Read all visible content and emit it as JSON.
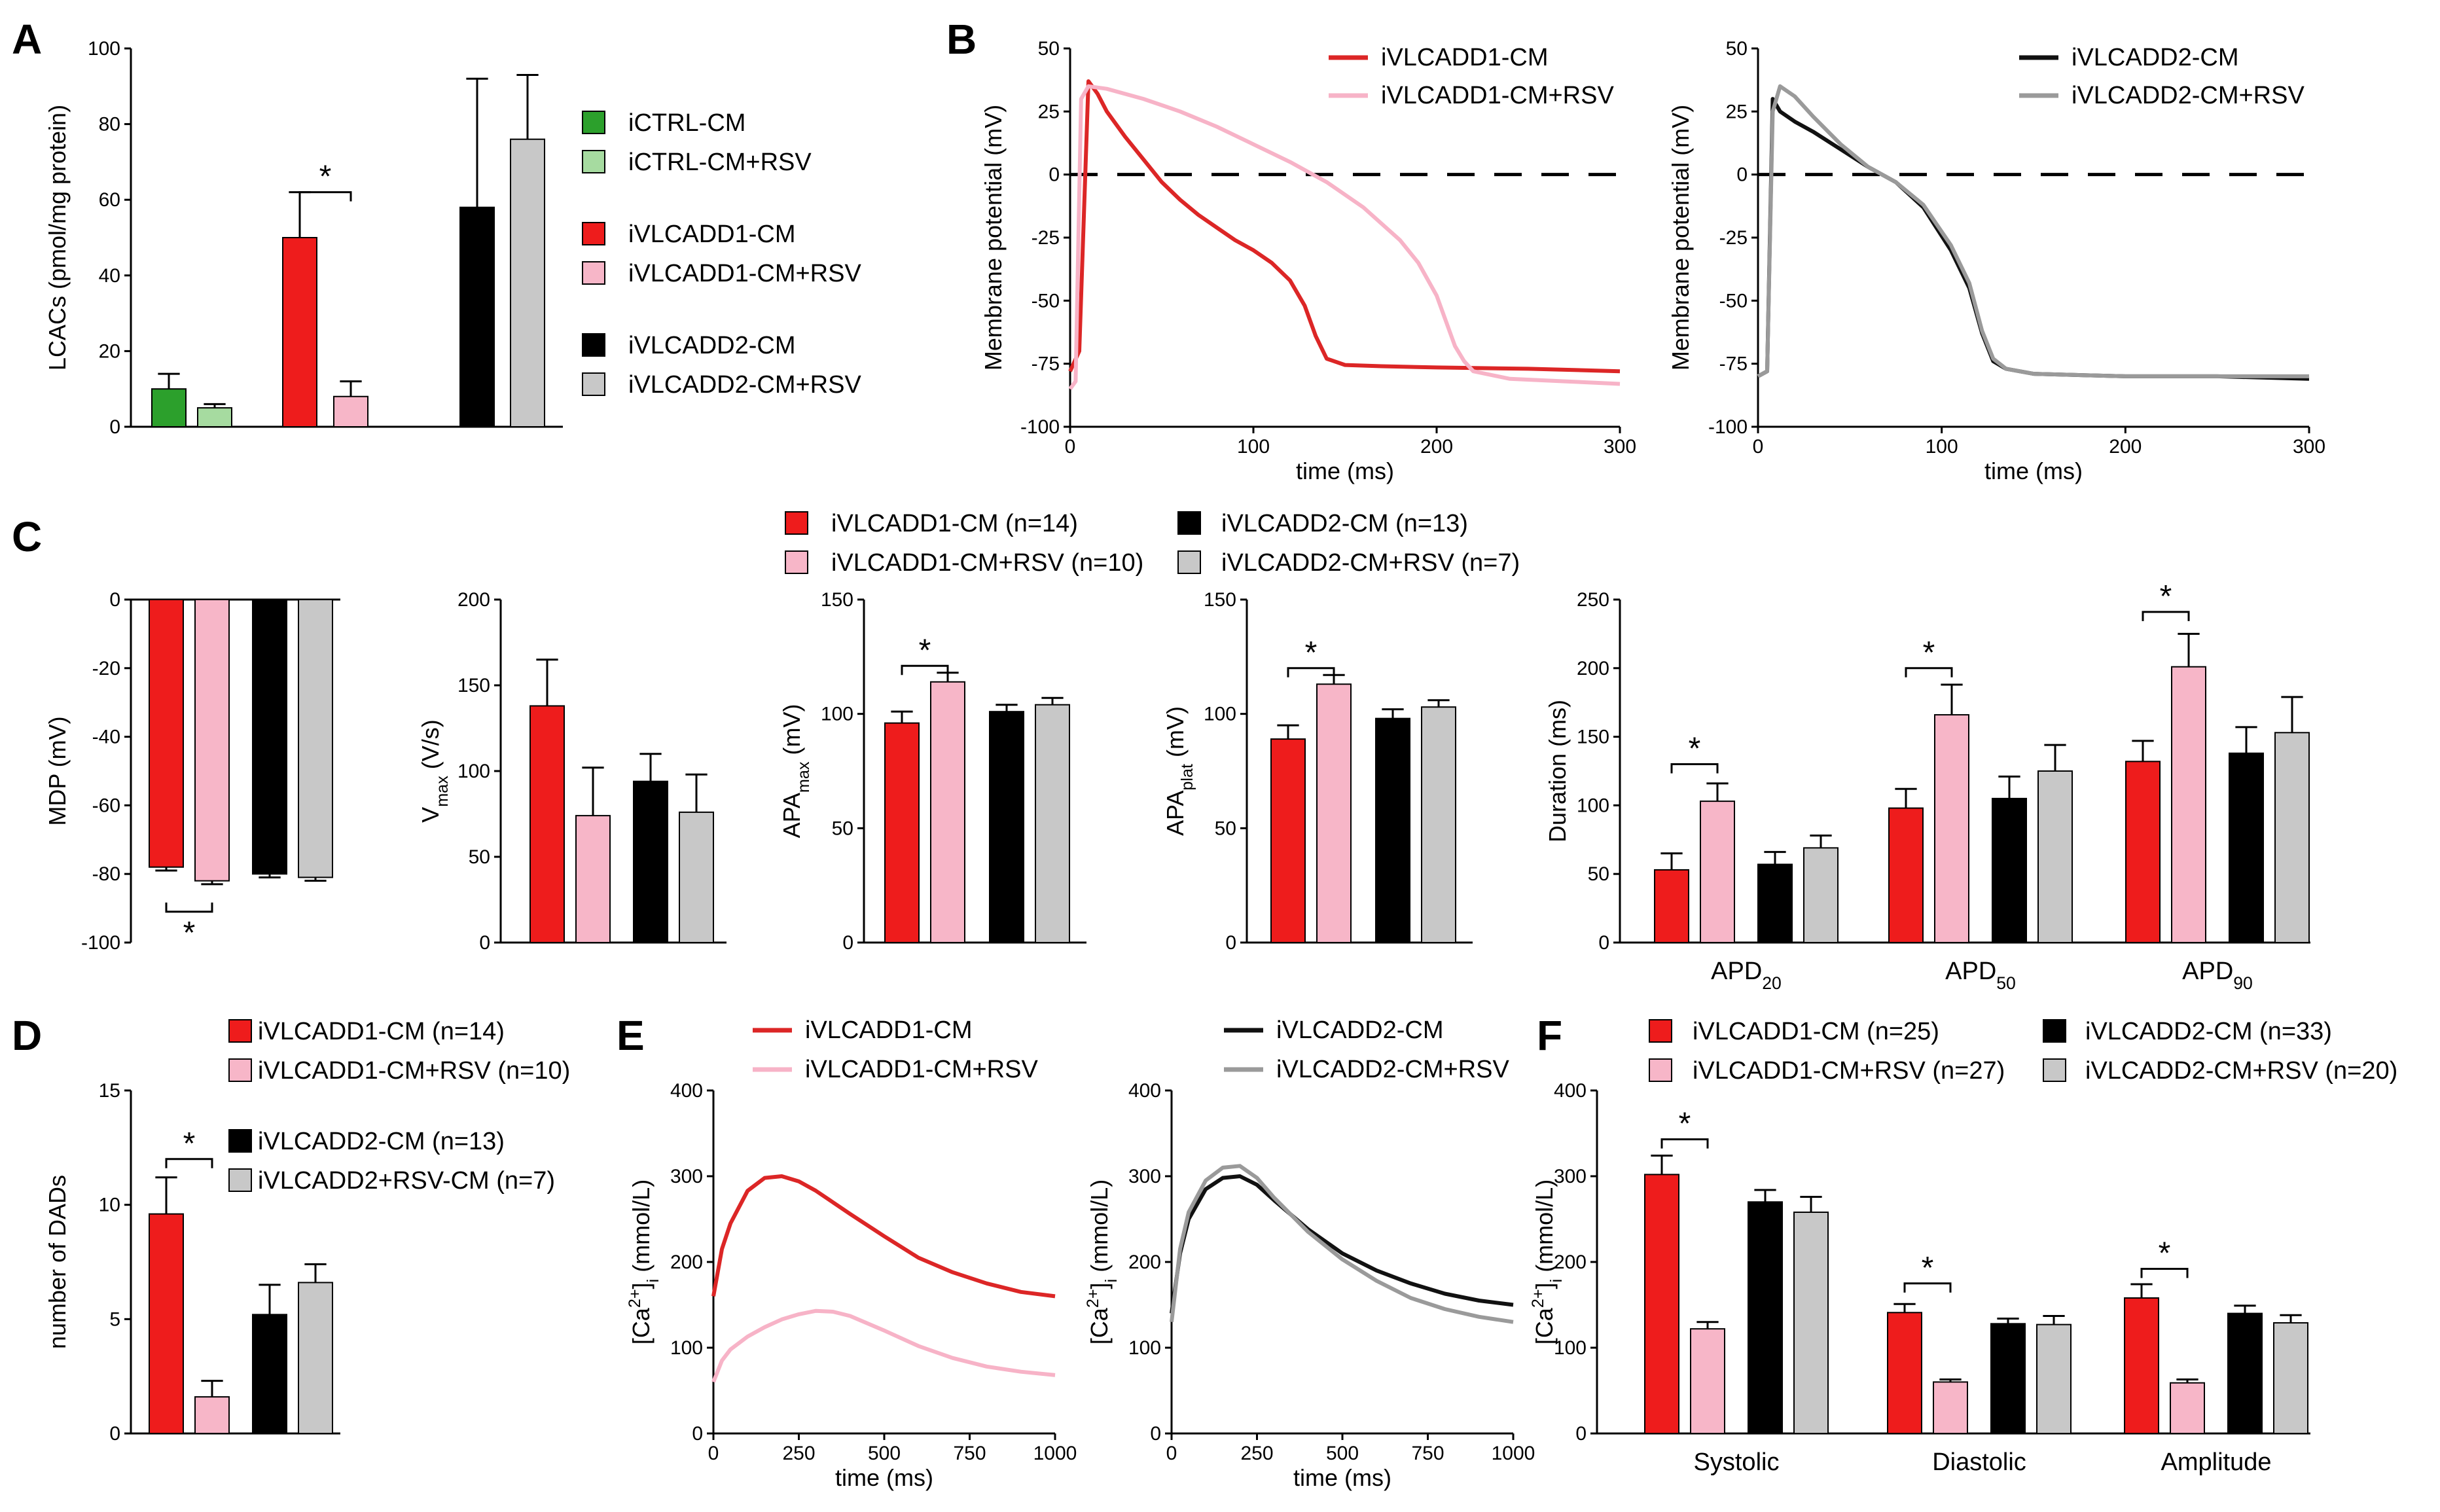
{
  "colors": {
    "iCTRL": "#2ca02c",
    "iCTRL_RSV": "#a6dba0",
    "V1": "#ee1c1c",
    "V1_RSV": "#f7b6c8",
    "V2": "#000000",
    "V2_RSV": "#c8c8c8",
    "trace_V1": "#dc2626",
    "trace_V1_RSV": "#f7b3c7",
    "trace_V2": "#111111",
    "trace_V2_RSV": "#9a9a9a"
  },
  "panels": {
    "A": {
      "letter": "A",
      "legend": [
        "iCTRL-CM",
        "iCTRL-CM+RSV",
        "iVLCADD1-CM",
        "iVLCADD1-CM+RSV",
        "iVLCADD2-CM",
        "iVLCADD2-CM+RSV"
      ],
      "star": "*"
    },
    "B": {
      "letter": "B",
      "left_legend": [
        "iVLCADD1-CM",
        "iVLCADD1-CM+RSV"
      ],
      "right_legend": [
        "iVLCADD2-CM",
        "iVLCADD2-CM+RSV"
      ]
    },
    "C": {
      "letter": "C",
      "legend": [
        "iVLCADD1-CM (n=14)",
        "iVLCADD1-CM+RSV (n=10)",
        "iVLCADD2-CM (n=13)",
        "iVLCADD2-CM+RSV (n=7)"
      ],
      "star": "*"
    },
    "D": {
      "letter": "D",
      "legend": [
        "iVLCADD1-CM (n=14)",
        "iVLCADD1-CM+RSV (n=10)",
        "iVLCADD2-CM (n=13)",
        "iVLCADD2+RSV-CM (n=7)"
      ],
      "star": "*"
    },
    "E": {
      "letter": "E",
      "left_legend": [
        "iVLCADD1-CM",
        "iVLCADD1-CM+RSV"
      ],
      "right_legend": [
        "iVLCADD2-CM",
        "iVLCADD2-CM+RSV"
      ]
    },
    "F": {
      "letter": "F",
      "legend": [
        "iVLCADD1-CM (n=25)",
        "iVLCADD1-CM+RSV (n=27)",
        "iVLCADD2-CM (n=33)",
        "iVLCADD2-CM+RSV (n=20)"
      ],
      "star": "*"
    }
  },
  "chart_data": [
    {
      "id": "A",
      "type": "bar",
      "ylabel": "LCACs (pmol/mg protein)",
      "ylim": [
        0,
        100
      ],
      "yticks": [
        0,
        20,
        40,
        60,
        80,
        100
      ],
      "groups": [
        "iCTRL",
        "iVLCADD1",
        "iVLCADD2"
      ],
      "series": [
        {
          "name": "iCTRL-CM",
          "values": [
            10,
            null,
            null
          ],
          "errors": [
            4,
            null,
            null
          ]
        },
        {
          "name": "iCTRL-CM+RSV",
          "values": [
            5,
            null,
            null
          ],
          "errors": [
            1,
            null,
            null
          ]
        },
        {
          "name": "iVLCADD1-CM",
          "values": [
            null,
            50,
            null
          ],
          "errors": [
            null,
            12,
            null
          ]
        },
        {
          "name": "iVLCADD1-CM+RSV",
          "values": [
            null,
            8,
            null
          ],
          "errors": [
            null,
            4,
            null
          ]
        },
        {
          "name": "iVLCADD2-CM",
          "values": [
            null,
            null,
            58
          ],
          "errors": [
            null,
            null,
            34
          ]
        },
        {
          "name": "iVLCADD2-CM+RSV",
          "values": [
            null,
            null,
            76
          ],
          "errors": [
            null,
            null,
            17
          ]
        }
      ],
      "significance": [
        {
          "between": [
            "iVLCADD1-CM",
            "iVLCADD1-CM+RSV"
          ],
          "label": "*"
        }
      ]
    },
    {
      "id": "B-left",
      "type": "line",
      "xlabel": "time (ms)",
      "ylabel": "Membrane potential (mV)",
      "xlim": [
        0,
        300
      ],
      "ylim": [
        -100,
        50
      ],
      "xticks": [
        0,
        100,
        200,
        300
      ],
      "yticks": [
        -100,
        -75,
        -50,
        -25,
        0,
        25,
        50
      ],
      "reference_line": 0,
      "series": [
        {
          "name": "iVLCADD1-CM",
          "x": [
            0,
            5,
            10,
            15,
            20,
            30,
            40,
            50,
            60,
            70,
            80,
            90,
            100,
            110,
            120,
            128,
            134,
            140,
            150,
            170,
            200,
            250,
            300
          ],
          "y": [
            -78,
            -70,
            37,
            32,
            25,
            15,
            6,
            -3,
            -10,
            -16,
            -21,
            -26,
            -30,
            -35,
            -42,
            -52,
            -64,
            -73,
            -75.5,
            -76,
            -76.5,
            -77,
            -78
          ]
        },
        {
          "name": "iVLCADD1-CM+RSV",
          "x": [
            0,
            3,
            6,
            10,
            20,
            40,
            60,
            80,
            100,
            120,
            140,
            160,
            180,
            190,
            200,
            205,
            210,
            215,
            220,
            240,
            270,
            300
          ],
          "y": [
            -85,
            -82,
            30,
            35,
            34,
            30,
            25,
            19,
            12,
            5,
            -3,
            -13,
            -26,
            -35,
            -48,
            -58,
            -68,
            -74,
            -78,
            -81,
            -82,
            -83
          ]
        }
      ]
    },
    {
      "id": "B-right",
      "type": "line",
      "xlabel": "time (ms)",
      "ylabel": "Membrane potential (mV)",
      "xlim": [
        0,
        300
      ],
      "ylim": [
        -100,
        50
      ],
      "xticks": [
        0,
        100,
        200,
        300
      ],
      "yticks": [
        -100,
        -75,
        -50,
        -25,
        0,
        25,
        50
      ],
      "reference_line": 0,
      "series": [
        {
          "name": "iVLCADD2-CM",
          "x": [
            0,
            5,
            8,
            12,
            20,
            30,
            45,
            60,
            75,
            90,
            105,
            115,
            122,
            128,
            135,
            150,
            200,
            250,
            300
          ],
          "y": [
            -80,
            -78,
            30,
            25,
            21,
            17,
            10,
            3,
            -3,
            -13,
            -30,
            -45,
            -63,
            -74,
            -77,
            -79,
            -80,
            -80,
            -81
          ]
        },
        {
          "name": "iVLCADD2-CM+RSV",
          "x": [
            0,
            5,
            8,
            12,
            20,
            30,
            45,
            60,
            75,
            90,
            105,
            115,
            122,
            128,
            135,
            150,
            200,
            250,
            300
          ],
          "y": [
            -80,
            -78,
            25,
            35,
            31,
            23,
            12,
            3,
            -3,
            -12,
            -28,
            -43,
            -62,
            -73,
            -77,
            -79,
            -80,
            -80,
            -80
          ]
        }
      ]
    },
    {
      "id": "C-MDP",
      "type": "bar",
      "ylabel": "MDP (mV)",
      "ylim": [
        -100,
        0
      ],
      "yticks": [
        0,
        -20,
        -40,
        -60,
        -80,
        -100
      ],
      "categories": [
        "iVLCADD1-CM",
        "iVLCADD1-CM+RSV",
        "iVLCADD2-CM",
        "iVLCADD2-CM+RSV"
      ],
      "values": [
        -78,
        -82,
        -80,
        -81
      ],
      "errors": [
        1,
        1,
        1,
        1
      ],
      "significance": [
        {
          "between": [
            "iVLCADD1-CM",
            "iVLCADD1-CM+RSV"
          ],
          "label": "*"
        }
      ]
    },
    {
      "id": "C-Vmax",
      "type": "bar",
      "ylabel": "V",
      "ylabel_sub": "max",
      "ylabel_tail": " (V/s)",
      "ylim": [
        0,
        200
      ],
      "yticks": [
        0,
        50,
        100,
        150,
        200
      ],
      "categories": [
        "iVLCADD1-CM",
        "iVLCADD1-CM+RSV",
        "iVLCADD2-CM",
        "iVLCADD2-CM+RSV"
      ],
      "values": [
        138,
        74,
        94,
        76
      ],
      "errors": [
        27,
        28,
        16,
        22
      ]
    },
    {
      "id": "C-APAmax",
      "type": "bar",
      "ylabel": "APA",
      "ylabel_sub": "max",
      "ylabel_tail": " (mV)",
      "ylim": [
        0,
        150
      ],
      "yticks": [
        0,
        50,
        100,
        150
      ],
      "categories": [
        "iVLCADD1-CM",
        "iVLCADD1-CM+RSV",
        "iVLCADD2-CM",
        "iVLCADD2-CM+RSV"
      ],
      "values": [
        96,
        114,
        101,
        104
      ],
      "errors": [
        5,
        4,
        3,
        3
      ],
      "significance": [
        {
          "between": [
            "iVLCADD1-CM",
            "iVLCADD1-CM+RSV"
          ],
          "label": "*"
        }
      ]
    },
    {
      "id": "C-APAplat",
      "type": "bar",
      "ylabel": "APA",
      "ylabel_sub": "plat",
      "ylabel_tail": " (mV)",
      "ylim": [
        0,
        150
      ],
      "yticks": [
        0,
        50,
        100,
        150
      ],
      "categories": [
        "iVLCADD1-CM",
        "iVLCADD1-CM+RSV",
        "iVLCADD2-CM",
        "iVLCADD2-CM+RSV"
      ],
      "values": [
        89,
        113,
        98,
        103
      ],
      "errors": [
        6,
        4,
        4,
        3
      ],
      "significance": [
        {
          "between": [
            "iVLCADD1-CM",
            "iVLCADD1-CM+RSV"
          ],
          "label": "*"
        }
      ]
    },
    {
      "id": "C-APD",
      "type": "bar",
      "ylabel": "Duration (ms)",
      "ylim": [
        0,
        250
      ],
      "yticks": [
        0,
        50,
        100,
        150,
        200,
        250
      ],
      "categories": [
        [
          "APD",
          "20"
        ],
        [
          "APD",
          "50"
        ],
        [
          "APD",
          "90"
        ]
      ],
      "series": [
        {
          "name": "iVLCADD1-CM",
          "values": [
            53,
            98,
            132
          ],
          "errors": [
            12,
            14,
            15
          ]
        },
        {
          "name": "iVLCADD1-CM+RSV",
          "values": [
            103,
            166,
            201
          ],
          "errors": [
            13,
            22,
            24
          ]
        },
        {
          "name": "iVLCADD2-CM",
          "values": [
            57,
            105,
            138
          ],
          "errors": [
            9,
            16,
            19
          ]
        },
        {
          "name": "iVLCADD2-CM+RSV",
          "values": [
            69,
            125,
            153
          ],
          "errors": [
            9,
            19,
            26
          ]
        }
      ],
      "significance": [
        {
          "group": 0,
          "label": "*"
        },
        {
          "group": 1,
          "label": "*"
        },
        {
          "group": 2,
          "label": "*"
        }
      ]
    },
    {
      "id": "D",
      "type": "bar",
      "ylabel": "number of DADs",
      "ylim": [
        0,
        15
      ],
      "yticks": [
        0,
        5,
        10,
        15
      ],
      "categories": [
        "iVLCADD1-CM",
        "iVLCADD1-CM+RSV",
        "iVLCADD2-CM",
        "iVLCADD2+RSV-CM"
      ],
      "values": [
        9.6,
        1.6,
        5.2,
        6.6
      ],
      "errors": [
        1.6,
        0.7,
        1.3,
        0.8
      ],
      "significance": [
        {
          "between": [
            "iVLCADD1-CM",
            "iVLCADD1-CM+RSV"
          ],
          "label": "*"
        }
      ]
    },
    {
      "id": "E-left",
      "type": "line",
      "xlabel": "time (ms)",
      "ylabel": "[Ca2+]i (mmol/L)",
      "xlim": [
        0,
        1000
      ],
      "ylim": [
        0,
        400
      ],
      "xticks": [
        0,
        250,
        500,
        750,
        1000
      ],
      "yticks": [
        0,
        100,
        200,
        300,
        400
      ],
      "series": [
        {
          "name": "iVLCADD1-CM",
          "x": [
            0,
            25,
            50,
            100,
            150,
            200,
            250,
            300,
            400,
            500,
            600,
            700,
            800,
            900,
            1000
          ],
          "y": [
            160,
            215,
            245,
            283,
            298,
            300,
            294,
            283,
            256,
            230,
            205,
            188,
            175,
            165,
            160
          ]
        },
        {
          "name": "iVLCADD1-CM+RSV",
          "x": [
            0,
            25,
            50,
            100,
            150,
            200,
            250,
            300,
            350,
            400,
            500,
            600,
            700,
            800,
            900,
            1000
          ],
          "y": [
            60,
            85,
            98,
            113,
            124,
            133,
            139,
            143,
            142,
            137,
            120,
            102,
            88,
            78,
            72,
            68
          ]
        }
      ]
    },
    {
      "id": "E-right",
      "type": "line",
      "xlabel": "time (ms)",
      "ylabel": "[Ca2+]i (mmol/L)",
      "xlim": [
        0,
        1000
      ],
      "ylim": [
        0,
        400
      ],
      "xticks": [
        0,
        250,
        500,
        750,
        1000
      ],
      "yticks": [
        0,
        100,
        200,
        300,
        400
      ],
      "series": [
        {
          "name": "iVLCADD2-CM",
          "x": [
            0,
            25,
            50,
            100,
            150,
            200,
            250,
            300,
            400,
            500,
            600,
            700,
            800,
            900,
            1000
          ],
          "y": [
            140,
            210,
            250,
            285,
            298,
            300,
            290,
            272,
            238,
            210,
            190,
            175,
            163,
            155,
            150
          ]
        },
        {
          "name": "iVLCADD2-CM+RSV",
          "x": [
            0,
            25,
            50,
            100,
            150,
            200,
            250,
            300,
            400,
            500,
            600,
            700,
            800,
            900,
            1000
          ],
          "y": [
            130,
            215,
            258,
            295,
            310,
            312,
            298,
            275,
            235,
            203,
            178,
            158,
            145,
            136,
            130
          ]
        }
      ]
    },
    {
      "id": "F",
      "type": "bar",
      "ylabel": "[Ca2+]i (mmol/L)",
      "ylim": [
        0,
        400
      ],
      "yticks": [
        0,
        100,
        200,
        300,
        400
      ],
      "categories": [
        "Systolic",
        "Diastolic",
        "Amplitude"
      ],
      "series": [
        {
          "name": "iVLCADD1-CM",
          "values": [
            302,
            141,
            158
          ],
          "errors": [
            22,
            10,
            16
          ]
        },
        {
          "name": "iVLCADD1-CM+RSV",
          "values": [
            122,
            60,
            59
          ],
          "errors": [
            8,
            3,
            4
          ]
        },
        {
          "name": "iVLCADD2-CM",
          "values": [
            270,
            128,
            140
          ],
          "errors": [
            14,
            6,
            9
          ]
        },
        {
          "name": "iVLCADD2-CM+RSV",
          "values": [
            258,
            127,
            129
          ],
          "errors": [
            18,
            10,
            9
          ]
        }
      ],
      "significance": [
        {
          "group": 0,
          "label": "*"
        },
        {
          "group": 1,
          "label": "*"
        },
        {
          "group": 2,
          "label": "*"
        }
      ]
    }
  ]
}
